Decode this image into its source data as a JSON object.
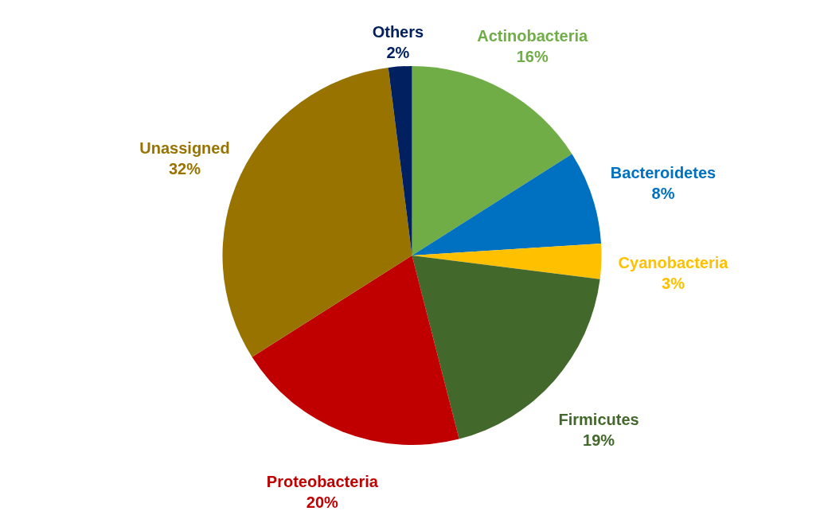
{
  "chart_data": {
    "type": "pie",
    "categories": [
      "Actinobacteria",
      "Bacteroidetes",
      "Cyanobacteria",
      "Firmicutes",
      "Proteobacteria",
      "Unassigned",
      "Others"
    ],
    "values": [
      16,
      8,
      3,
      19,
      20,
      32,
      2
    ],
    "colors": [
      "#70ad47",
      "#0070c0",
      "#ffc000",
      "#43682b",
      "#c00000",
      "#997300",
      "#002060"
    ],
    "value_labels": [
      "16%",
      "8%",
      "3%",
      "19%",
      "20%",
      "32%",
      "2%"
    ]
  }
}
